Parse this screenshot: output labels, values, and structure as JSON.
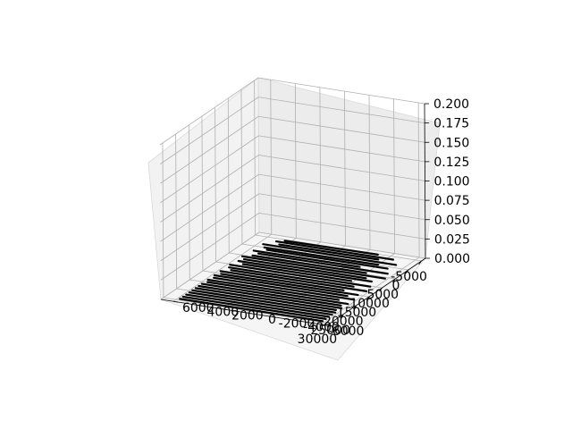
{
  "chart_data": {
    "type": "line",
    "title": "",
    "xlabel": "",
    "ylabel": "",
    "zlabel": "",
    "xlim": [
      -6500,
      31000
    ],
    "ylim": [
      -6500,
      7000
    ],
    "zlim": [
      0,
      0.2
    ],
    "grid": true,
    "x_ticks": [
      "-5000",
      "0",
      "5000",
      "10000",
      "15000",
      "20000",
      "25000",
      "30000"
    ],
    "y_ticks": [
      "-6000",
      "-4000",
      "-2000",
      "0",
      "2000",
      "4000",
      "6000"
    ],
    "z_ticks": [
      "0.000",
      "0.025",
      "0.050",
      "0.075",
      "0.100",
      "0.125",
      "0.150",
      "0.175",
      "0.200"
    ],
    "x_tick_values": [
      -5000,
      0,
      5000,
      10000,
      15000,
      20000,
      25000,
      30000
    ],
    "y_tick_values": [
      -6000,
      -4000,
      -2000,
      0,
      2000,
      4000,
      6000
    ],
    "z_tick_values": [
      0,
      0.025,
      0.05,
      0.075,
      0.1,
      0.125,
      0.15,
      0.175,
      0.2
    ],
    "series_color": "#000000",
    "pane_colors": {
      "left": "#f2f2f2",
      "back": "#ececec",
      "floor": "#f5f5f5"
    },
    "line_segments": [
      {
        "x": [
          -4800,
          -4500
        ],
        "y": [
          -3000,
          4500
        ],
        "z": 0
      },
      {
        "x": [
          -3600,
          -3600
        ],
        "y": [
          -4500,
          5000
        ],
        "z": 0
      },
      {
        "x": [
          -2600,
          -2400
        ],
        "y": [
          -3500,
          4500
        ],
        "z": 0
      },
      {
        "x": [
          -1400,
          -1400
        ],
        "y": [
          -5200,
          5600
        ],
        "z": 0
      },
      {
        "x": [
          -200,
          0
        ],
        "y": [
          -4000,
          5200
        ],
        "z": 0
      },
      {
        "x": [
          900,
          900
        ],
        "y": [
          -5000,
          4800
        ],
        "z": 0
      },
      {
        "x": [
          2100,
          2200
        ],
        "y": [
          -3000,
          5600
        ],
        "z": 0
      },
      {
        "x": [
          3200,
          3200
        ],
        "y": [
          -5500,
          5000
        ],
        "z": 0
      },
      {
        "x": [
          4400,
          4500
        ],
        "y": [
          -4000,
          5200
        ],
        "z": 0
      },
      {
        "x": [
          5600,
          5600
        ],
        "y": [
          -5800,
          5800
        ],
        "z": 0
      },
      {
        "x": [
          6800,
          6800
        ],
        "y": [
          -4500,
          5400
        ],
        "z": 0
      },
      {
        "x": [
          7900,
          8000
        ],
        "y": [
          -5200,
          5600
        ],
        "z": 0
      },
      {
        "x": [
          9100,
          9100
        ],
        "y": [
          -3800,
          5000
        ],
        "z": 0
      },
      {
        "x": [
          10300,
          10300
        ],
        "y": [
          -5600,
          5800
        ],
        "z": 0
      },
      {
        "x": [
          11500,
          11600
        ],
        "y": [
          -4500,
          5600
        ],
        "z": 0
      },
      {
        "x": [
          12700,
          12700
        ],
        "y": [
          -5800,
          5200
        ],
        "z": 0
      },
      {
        "x": [
          13900,
          13900
        ],
        "y": [
          -4200,
          5800
        ],
        "z": 0
      },
      {
        "x": [
          15000,
          15100
        ],
        "y": [
          -5600,
          5500
        ],
        "z": 0
      },
      {
        "x": [
          16200,
          16200
        ],
        "y": [
          -5000,
          5800
        ],
        "z": 0
      },
      {
        "x": [
          17400,
          17400
        ],
        "y": [
          -5800,
          5600
        ],
        "z": 0
      },
      {
        "x": [
          18600,
          18700
        ],
        "y": [
          -4800,
          5800
        ],
        "z": 0
      },
      {
        "x": [
          19800,
          19800
        ],
        "y": [
          -5800,
          5600
        ],
        "z": 0
      },
      {
        "x": [
          21000,
          21000
        ],
        "y": [
          -5500,
          5800
        ],
        "z": 0
      },
      {
        "x": [
          22200,
          22200
        ],
        "y": [
          -5800,
          5800
        ],
        "z": 0
      },
      {
        "x": [
          23400,
          23400
        ],
        "y": [
          -5600,
          5800
        ],
        "z": 0
      },
      {
        "x": [
          24600,
          24600
        ],
        "y": [
          -5800,
          5800
        ],
        "z": 0
      },
      {
        "x": [
          25800,
          25800
        ],
        "y": [
          -5800,
          5800
        ],
        "z": 0
      },
      {
        "x": [
          27000,
          27000
        ],
        "y": [
          -5800,
          5800
        ],
        "z": 0
      },
      {
        "x": [
          28200,
          28200
        ],
        "y": [
          -5800,
          5800
        ],
        "z": 0
      },
      {
        "x": [
          29400,
          29400
        ],
        "y": [
          -5800,
          5800
        ],
        "z": 0
      }
    ]
  }
}
